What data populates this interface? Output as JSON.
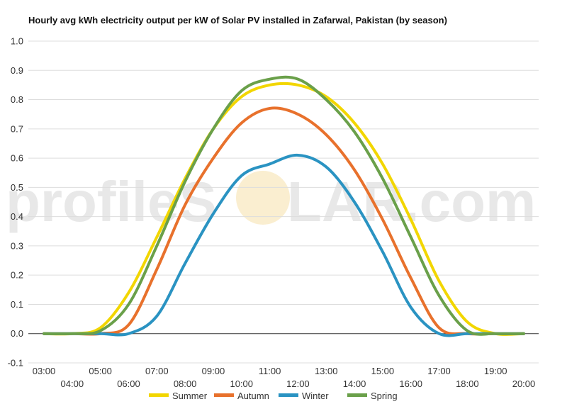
{
  "chart_data": {
    "type": "line",
    "title": "Hourly avg kWh electricity output per kW of Solar PV installed in Zafarwal, Pakistan (by season)",
    "xlabel": "",
    "ylabel": "",
    "ylim": [
      -0.1,
      1.0
    ],
    "y_ticks": [
      "1.0",
      "0.9",
      "0.8",
      "0.7",
      "0.6",
      "0.5",
      "0.4",
      "0.3",
      "0.2",
      "0.1",
      "0.0",
      "-0.1"
    ],
    "x": [
      "03:00",
      "04:00",
      "05:00",
      "06:00",
      "07:00",
      "08:00",
      "09:00",
      "10:00",
      "11:00",
      "12:00",
      "13:00",
      "14:00",
      "15:00",
      "16:00",
      "17:00",
      "18:00",
      "19:00",
      "20:00"
    ],
    "grid": true,
    "legend_position": "bottom",
    "series": [
      {
        "name": "Summer",
        "color": "#f2d600",
        "values": [
          0.0,
          0.0,
          0.02,
          0.14,
          0.33,
          0.53,
          0.7,
          0.81,
          0.85,
          0.85,
          0.81,
          0.72,
          0.58,
          0.39,
          0.18,
          0.04,
          0.0,
          0.0
        ]
      },
      {
        "name": "Autumn",
        "color": "#e8712c",
        "values": [
          0.0,
          0.0,
          0.0,
          0.03,
          0.22,
          0.44,
          0.6,
          0.72,
          0.77,
          0.75,
          0.68,
          0.56,
          0.39,
          0.19,
          0.02,
          0.0,
          0.0,
          0.0
        ]
      },
      {
        "name": "Winter",
        "color": "#2a93c2",
        "values": [
          0.0,
          0.0,
          0.0,
          0.0,
          0.06,
          0.24,
          0.41,
          0.54,
          0.58,
          0.61,
          0.57,
          0.45,
          0.28,
          0.09,
          0.0,
          0.0,
          0.0,
          0.0
        ]
      },
      {
        "name": "Spring",
        "color": "#6aa04a",
        "values": [
          0.0,
          0.0,
          0.01,
          0.1,
          0.3,
          0.52,
          0.7,
          0.83,
          0.87,
          0.87,
          0.8,
          0.69,
          0.53,
          0.33,
          0.13,
          0.01,
          0.0,
          0.0
        ]
      }
    ]
  },
  "watermark": {
    "text_left": "profileS",
    "text_right": "LAR.com"
  }
}
